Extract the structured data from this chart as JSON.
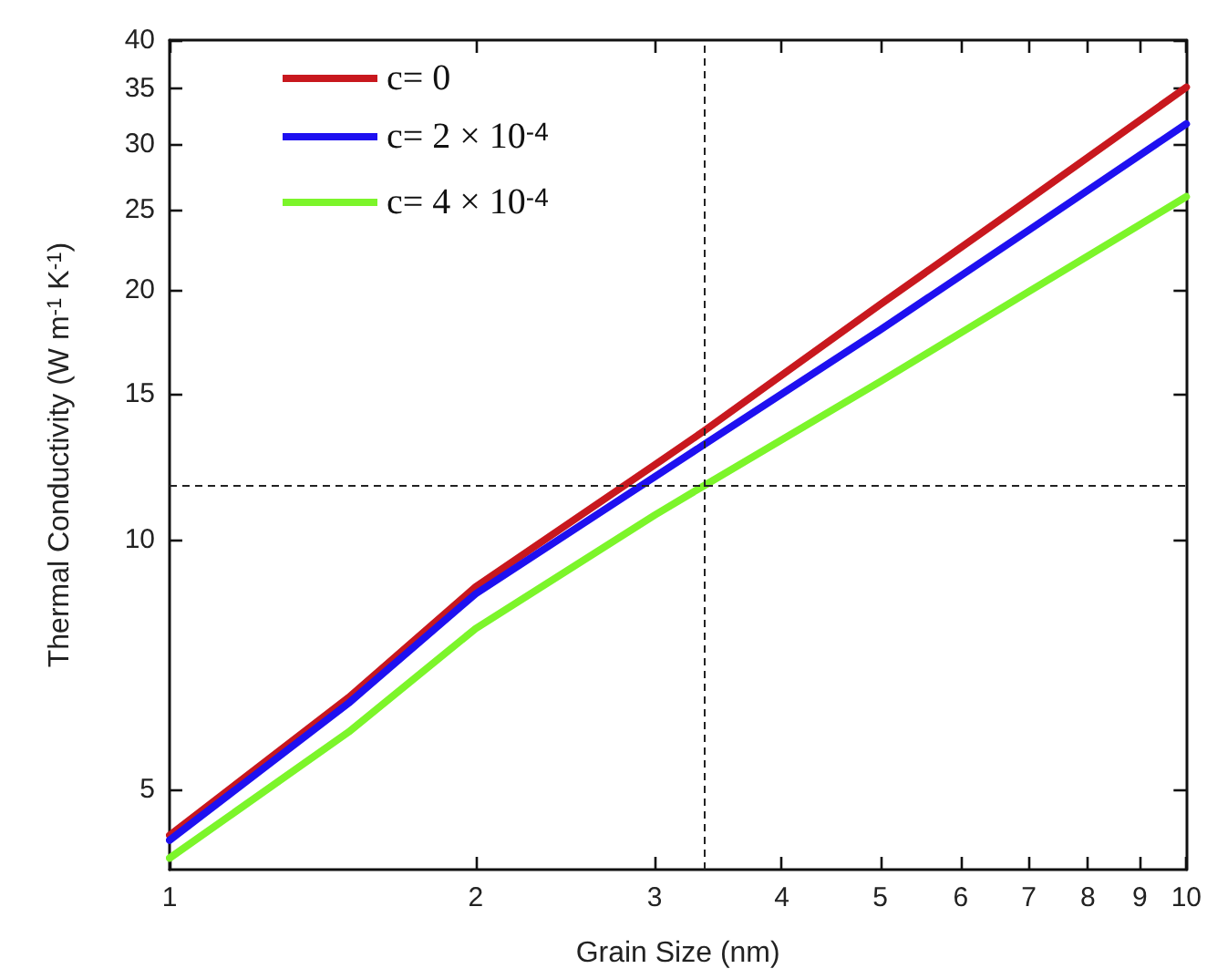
{
  "chart_data": {
    "type": "line",
    "xlabel": "Grain Size (nm)",
    "ylabel": "Thermal Conductivity (W m$^{-1}$ K$^{-1}$)",
    "x": [
      1,
      1.5,
      2,
      3,
      3.35,
      5,
      7,
      10
    ],
    "series": [
      {
        "name": "c= 0",
        "color": "#c8181e",
        "values": [
          4.4,
          6.45,
          8.77,
          12.3,
          13.5,
          19.2,
          25.7,
          35.1
        ]
      },
      {
        "name": "c= 2 × 10$^{-4}$",
        "color": "#1e10f0",
        "values": [
          4.34,
          6.35,
          8.6,
          11.9,
          13.0,
          17.9,
          23.6,
          31.7
        ]
      },
      {
        "name": "c= 4 × 10$^{-4}$",
        "color": "#7cf52a",
        "values": [
          4.13,
          5.86,
          7.81,
          10.7,
          11.6,
          15.5,
          19.9,
          25.9
        ]
      }
    ],
    "log": "xy",
    "xlim": [
      1,
      10
    ],
    "ylim": [
      4,
      40
    ],
    "xticks": [
      1,
      2,
      3,
      4,
      5,
      6,
      7,
      8,
      9,
      10
    ],
    "yticks": [
      5,
      10,
      15,
      20,
      25,
      30,
      35,
      40
    ],
    "ref_lines": [
      {
        "axis": "x",
        "value": 3.35,
        "line_style": "dashed",
        "color": "#222222"
      },
      {
        "axis": "y",
        "value": 11.6,
        "line_style": "dashed",
        "color": "#222222"
      }
    ],
    "grid": false,
    "legend": "top left",
    "marker": "none",
    "line_style": "solid"
  }
}
